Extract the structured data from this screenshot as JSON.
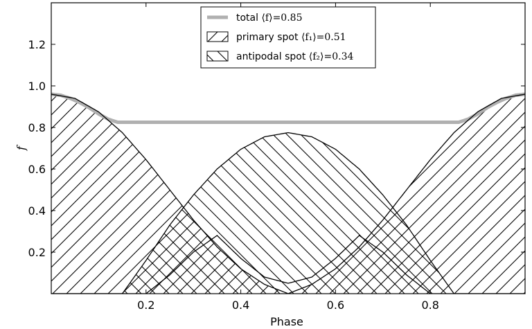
{
  "chart_data": {
    "type": "area",
    "xlabel": "Phase",
    "ylabel": "f",
    "xlim": [
      0.0,
      1.0
    ],
    "ylim": [
      0.0,
      1.4
    ],
    "xticks": [
      0.2,
      0.4,
      0.6,
      0.8
    ],
    "yticks": [
      0.2,
      0.4,
      0.6,
      0.8,
      1.0,
      1.2
    ],
    "xtick_labels": [
      "0.2",
      "0.4",
      "0.6",
      "0.8"
    ],
    "ytick_labels": [
      "0.2",
      "0.4",
      "0.6",
      "0.8",
      "1.0",
      "1.2"
    ],
    "grid": false,
    "legend_position": "top-center",
    "series": [
      {
        "name": "total",
        "legend_prefix": "total",
        "legend_math": "⟨f⟩=0.85",
        "style": "line",
        "color": "#b0b0b0",
        "x": [
          0.0,
          0.02,
          0.04,
          0.06,
          0.08,
          0.1,
          0.12,
          0.14,
          0.5,
          0.86,
          0.88,
          0.9,
          0.92,
          0.94,
          0.96,
          0.98,
          1.0
        ],
        "y": [
          0.96,
          0.955,
          0.94,
          0.92,
          0.895,
          0.865,
          0.84,
          0.825,
          0.825,
          0.825,
          0.84,
          0.865,
          0.895,
          0.92,
          0.94,
          0.955,
          0.96
        ]
      },
      {
        "name": "primary spot",
        "legend_prefix": "primary spot",
        "legend_math": "⟨f₁⟩=0.51",
        "style": "hatch-forward",
        "x": [
          0.0,
          0.05,
          0.1,
          0.15,
          0.2,
          0.25,
          0.3,
          0.35,
          0.4,
          0.45,
          0.5,
          0.55,
          0.6,
          0.65,
          0.7,
          0.75,
          0.8,
          0.85,
          0.9,
          0.95,
          1.0
        ],
        "y": [
          0.96,
          0.94,
          0.875,
          0.775,
          0.645,
          0.5,
          0.355,
          0.225,
          0.12,
          0.045,
          0.0,
          0.045,
          0.12,
          0.225,
          0.355,
          0.5,
          0.645,
          0.775,
          0.875,
          0.94,
          0.96
        ]
      },
      {
        "name": "antipodal spot",
        "legend_prefix": "antipodal spot",
        "legend_math": "⟨f₂⟩=0.34",
        "style": "hatch-backward",
        "x": [
          0.0,
          0.05,
          0.1,
          0.15,
          0.2,
          0.25,
          0.3,
          0.35,
          0.4,
          0.45,
          0.5,
          0.55,
          0.6,
          0.65,
          0.7,
          0.75,
          0.8,
          0.85,
          0.9,
          0.95,
          1.0
        ],
        "y": [
          0.0,
          0.0,
          0.0,
          0.0,
          0.16,
          0.33,
          0.475,
          0.6,
          0.695,
          0.755,
          0.775,
          0.755,
          0.695,
          0.6,
          0.475,
          0.33,
          0.16,
          0.0,
          0.0,
          0.0,
          0.0
        ]
      }
    ],
    "boundary_curve": {
      "x": [
        0.0,
        0.05,
        0.1,
        0.15,
        0.2,
        0.25,
        0.3,
        0.35,
        0.4,
        0.45,
        0.5,
        0.55,
        0.6,
        0.65,
        0.7,
        0.75,
        0.8,
        0.85,
        0.9,
        0.95,
        1.0
      ],
      "y": [
        0.0,
        0.0,
        0.0,
        0.0,
        0.0,
        0.09,
        0.2,
        0.28,
        0.17,
        0.08,
        0.05,
        0.08,
        0.17,
        0.28,
        0.2,
        0.09,
        0.0,
        0.0,
        0.0,
        0.0,
        0.0
      ]
    }
  }
}
